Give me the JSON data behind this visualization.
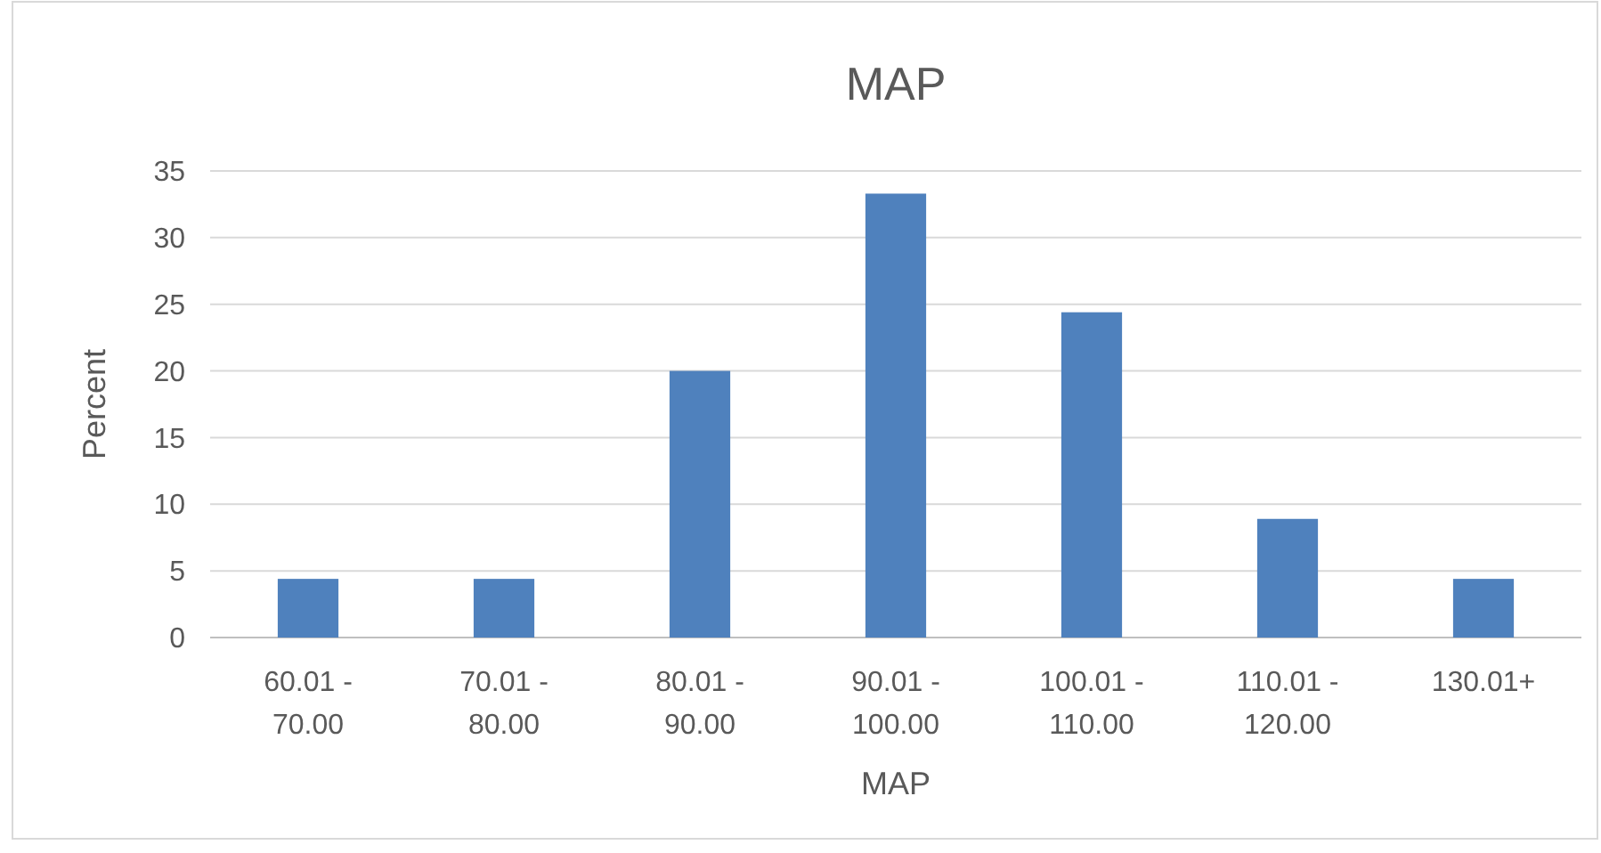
{
  "chart_data": {
    "type": "bar",
    "title": "MAP",
    "xlabel": "MAP",
    "ylabel": "Percent",
    "categories": [
      "60.01 - 70.00",
      "70.01 - 80.00",
      "80.01 - 90.00",
      "90.01 - 100.00",
      "100.01 - 110.00",
      "110.01 - 120.00",
      "130.01+"
    ],
    "values": [
      4.4,
      4.4,
      20,
      33.3,
      24.4,
      8.9,
      4.4
    ],
    "color": "#4f81bd",
    "ylim": [
      0,
      35
    ],
    "yticks": [
      0,
      5,
      10,
      15,
      20,
      25,
      30,
      35
    ],
    "grid": "y"
  }
}
